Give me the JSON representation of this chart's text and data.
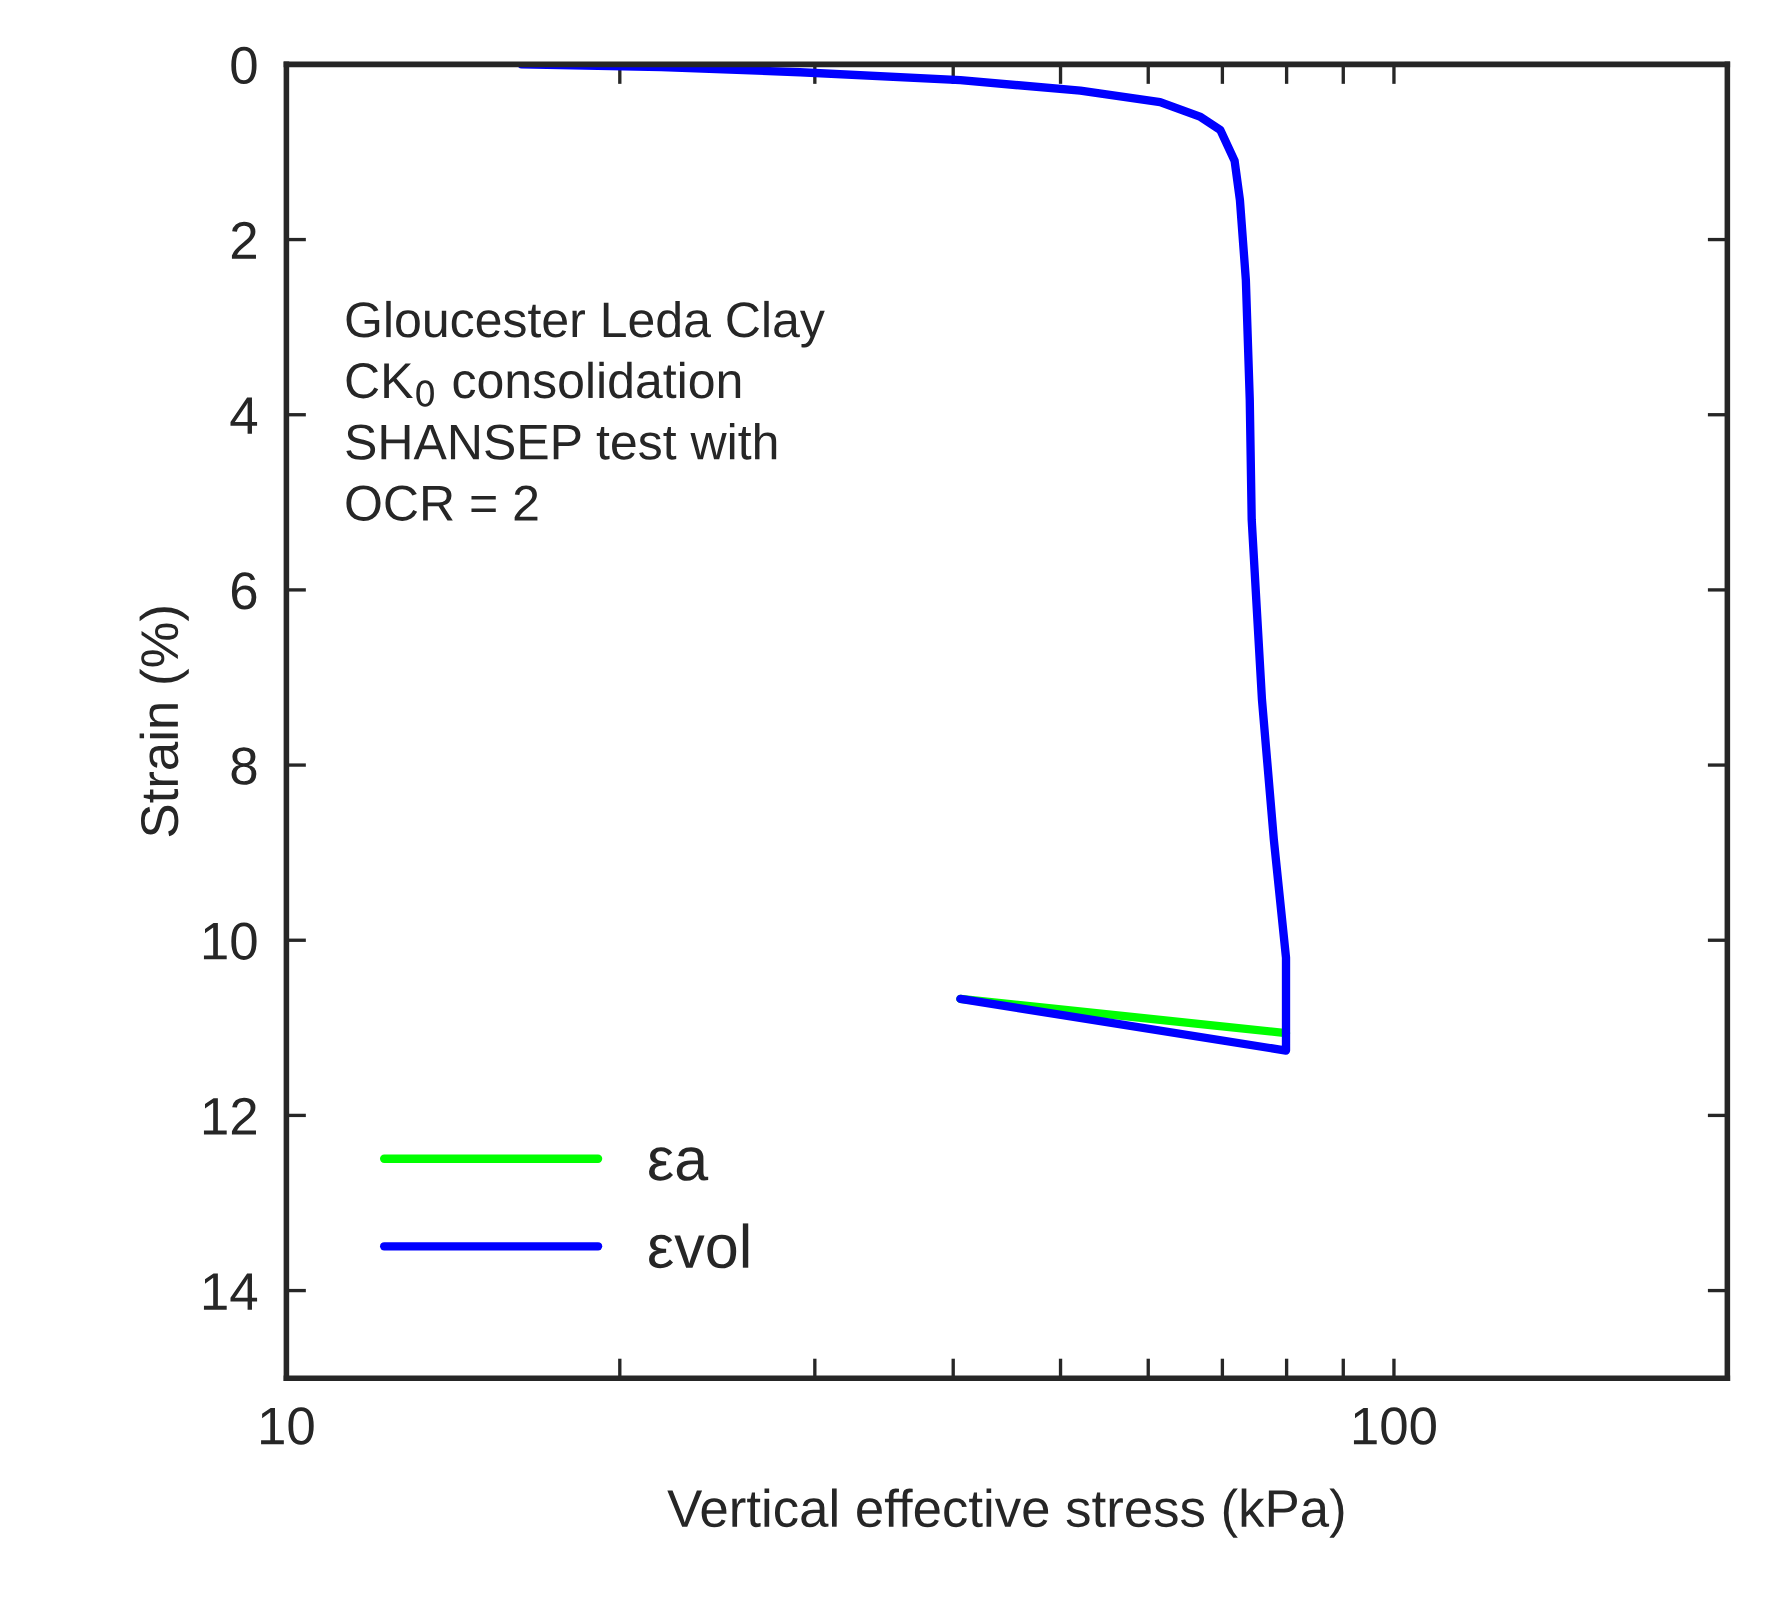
{
  "chart_data": {
    "type": "line",
    "xlabel": "Vertical effective stress (kPa)",
    "ylabel": "Strain (%)",
    "annotations": [
      "Gloucester Leda Clay\nCK$_{0}$ consolidation\nSHANSEP test with\nOCR = 2"
    ],
    "log": "x",
    "xlim": [
      10,
      200
    ],
    "xticks": [
      10,
      {
        "value": 20,
        "label": null
      },
      {
        "value": 30,
        "label": null
      },
      {
        "value": 40,
        "label": null
      },
      {
        "value": 50,
        "label": null
      },
      {
        "value": 60,
        "label": null
      },
      {
        "value": 70,
        "label": null
      },
      {
        "value": 80,
        "label": null
      },
      {
        "value": 90,
        "label": null
      },
      100
    ],
    "ylim": [
      15,
      0
    ],
    "yticks": [
      0,
      2,
      4,
      6,
      8,
      10,
      12,
      14
    ],
    "grid": false,
    "legend": "bottom left",
    "marker": "none",
    "line_style": "solid",
    "series": [
      {
        "name": "εa",
        "color": "#00ff00",
        "x": [
          79.9,
          40.6
        ],
        "values": [
          11.06,
          10.67
        ]
      },
      {
        "name": "εvol",
        "color": "#0000ff",
        "x": [
          16.3,
          21.8,
          29.1,
          40.6,
          52.1,
          61.5,
          66.9,
          69.7,
          71.8,
          72.6,
          73.5,
          74.1,
          74.4,
          76.0,
          77.9,
          79.9,
          79.9,
          40.6
        ],
        "values": [
          0,
          0.03,
          0.09,
          0.18,
          0.3,
          0.43,
          0.6,
          0.75,
          1.1,
          1.55,
          2.46,
          3.83,
          5.2,
          7.25,
          8.85,
          10.2,
          11.26,
          10.67
        ]
      }
    ]
  }
}
